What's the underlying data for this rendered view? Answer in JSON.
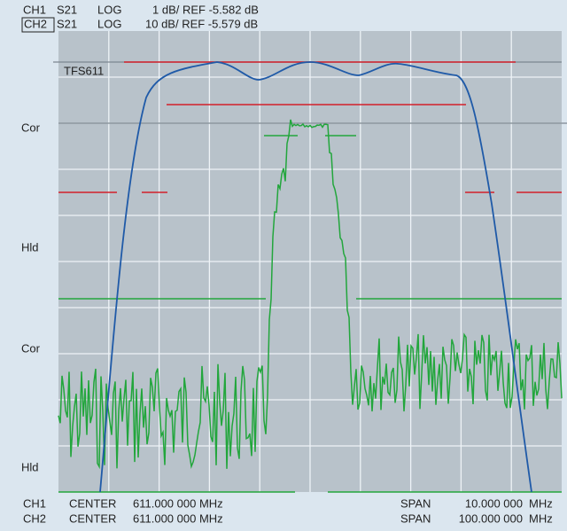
{
  "header": {
    "rows": [
      {
        "channel": "CH1",
        "param": "S21",
        "format": "LOG",
        "scale": "1 dB/ REF -5.582 dB"
      },
      {
        "channel": "CH2",
        "param": "S21",
        "format": "LOG",
        "scale": "10 dB/ REF -5.579 dB"
      }
    ]
  },
  "labels": {
    "marker": "TFS611",
    "side": [
      "Cor",
      "Hld",
      "Cor",
      "Hld"
    ]
  },
  "footer": {
    "rows": [
      {
        "channel": "CH1",
        "center_label": "CENTER",
        "center": "611.000 000 MHz",
        "span_label": "SPAN",
        "span": "10.000 000",
        "unit": "MHz"
      },
      {
        "channel": "CH2",
        "center_label": "CENTER",
        "center": "611.000 000 MHz",
        "span_label": "SPAN",
        "span": "100.000 000",
        "unit": "MHz"
      }
    ]
  }
}
